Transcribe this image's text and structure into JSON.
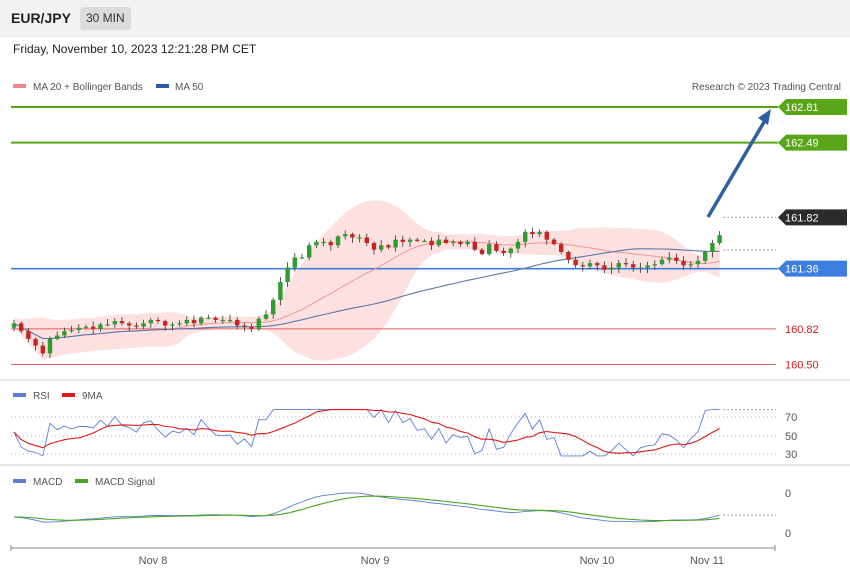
{
  "header": {
    "symbol": "EUR/JPY",
    "timeframe": "30 MIN",
    "datetime": "Friday, November 10, 2023 12:21:28 PM CET"
  },
  "legend": {
    "ma20": "MA 20 + Bollinger Bands",
    "ma50": "MA 50",
    "credit": "Research © 2023 Trading Central"
  },
  "colors": {
    "green": "#58a618",
    "blue": "#3d7fe0",
    "red": "#e06060",
    "dark": "#2b2b2b",
    "arrow": "#2e5fa3",
    "bollinger": "#fcd6d6",
    "ma20": "#ee9898",
    "ma50": "#5b79a8",
    "candle_up": "#2e9c2e",
    "candle_down": "#cc2222"
  },
  "levels": [
    {
      "value": 162.81,
      "label": "162.81",
      "kind": "green-tag"
    },
    {
      "value": 162.49,
      "label": "162.49",
      "kind": "green-tag"
    },
    {
      "value": 161.82,
      "label": "161.82",
      "kind": "dark-tag"
    },
    {
      "value": 161.36,
      "label": "161.36",
      "kind": "blue-tag"
    },
    {
      "value": 160.82,
      "label": "160.82",
      "kind": "red-text"
    },
    {
      "value": 160.5,
      "label": "160.50",
      "kind": "red-text"
    }
  ],
  "x_labels": [
    "Nov 8",
    "Nov 9",
    "Nov 10",
    "Nov 11"
  ],
  "rsi": {
    "legend": [
      "RSI",
      "9MA"
    ],
    "ticks": [
      "70",
      "50",
      "30"
    ]
  },
  "macd": {
    "legend": [
      "MACD",
      "MACD Signal"
    ],
    "ticks": [
      "0",
      "0"
    ]
  },
  "chart_data": {
    "type": "candlestick",
    "price_range": [
      160.45,
      162.85
    ],
    "close": [
      160.87,
      160.8,
      160.73,
      160.67,
      160.6,
      160.73,
      160.76,
      160.8,
      160.81,
      160.83,
      160.84,
      160.82,
      160.86,
      160.86,
      160.89,
      160.87,
      160.85,
      160.84,
      160.87,
      160.9,
      160.89,
      160.85,
      160.86,
      160.87,
      160.9,
      160.87,
      160.92,
      160.92,
      160.9,
      160.9,
      160.9,
      160.85,
      160.84,
      160.82,
      160.91,
      160.95,
      161.08,
      161.24,
      161.37,
      161.46,
      161.46,
      161.57,
      161.6,
      161.6,
      161.57,
      161.65,
      161.67,
      161.64,
      161.64,
      161.59,
      161.53,
      161.57,
      161.55,
      161.62,
      161.6,
      161.62,
      161.61,
      161.61,
      161.57,
      161.62,
      161.59,
      161.6,
      161.58,
      161.6,
      161.53,
      161.49,
      161.58,
      161.52,
      161.5,
      161.54,
      161.6,
      161.69,
      161.67,
      161.69,
      161.62,
      161.58,
      161.51,
      161.44,
      161.39,
      161.38,
      161.41,
      161.39,
      161.35,
      161.37,
      161.41,
      161.4,
      161.37,
      161.37,
      161.39,
      161.4,
      161.44,
      161.46,
      161.43,
      161.39,
      161.4,
      161.43,
      161.51,
      161.59,
      161.66
    ],
    "x_label_positions": [
      "Nov 8",
      "Nov 9",
      "Nov 10",
      "Nov 11"
    ],
    "ma20_label": "MA 20 + Bollinger Bands",
    "ma50_label": "MA 50",
    "projection": {
      "from": 161.82,
      "to": 162.81
    }
  }
}
